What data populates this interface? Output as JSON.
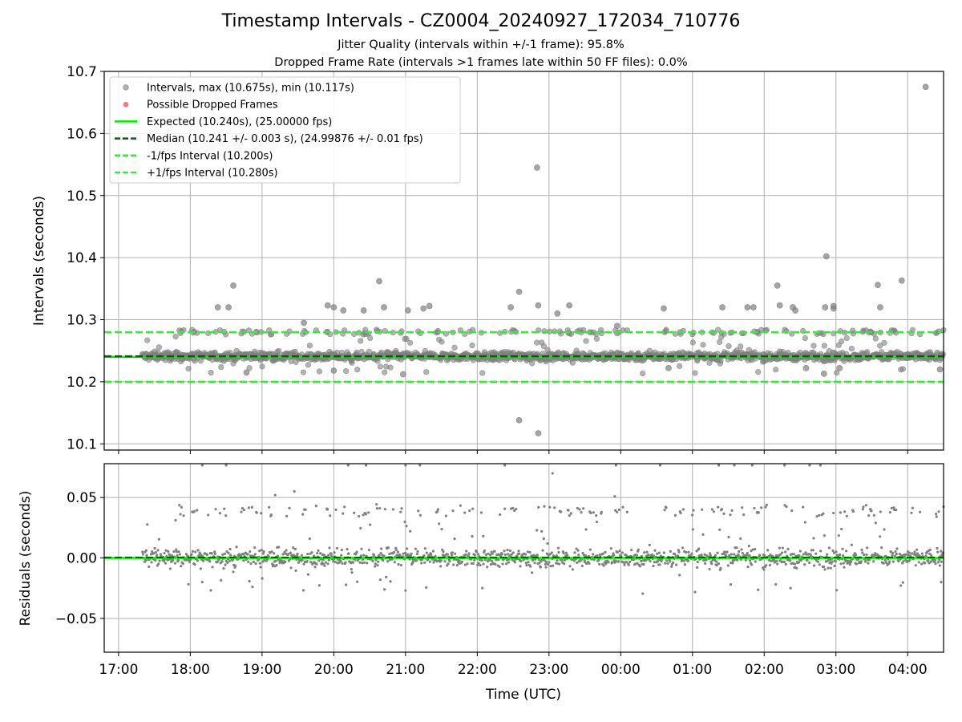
{
  "title": "Timestamp Intervals - CZ0004_20240927_172034_710776",
  "subtitle_1": "Jitter Quality (intervals within +/-1 frame): 95.8%",
  "subtitle_2": "Dropped Frame Rate (intervals >1 frames late within 50 FF files): 0.0%",
  "colors": {
    "intervals": "#808080",
    "dropped": "#ff3b3b",
    "expected": "#00ee00",
    "median": "#006400",
    "fps_band": "#33ee33",
    "grid": "#b0b0b0"
  },
  "chart_data": [
    {
      "type": "scatter",
      "name": "intervals-panel",
      "ylabel": "Intervals (seconds)",
      "ylim": [
        10.09,
        10.7
      ],
      "yticks": [
        10.1,
        10.2,
        10.3,
        10.4,
        10.5,
        10.6,
        10.7
      ],
      "ytick_labels": [
        "10.1",
        "10.2",
        "10.3",
        "10.4",
        "10.5",
        "10.6",
        "10.7"
      ],
      "grid": true,
      "legend_position": "upper-left",
      "legend": [
        "Intervals, max (10.675s), min (10.117s)",
        "Possible Dropped Frames",
        "Expected (10.240s), (25.00000 fps)",
        "Median (10.241 +/- 0.003 s), (24.99876 +/- 0.01 fps)",
        "-1/fps Interval (10.200s)",
        "+1/fps Interval (10.280s)"
      ],
      "reference_lines": {
        "expected": 10.24,
        "median": 10.241,
        "minus_fps": 10.2,
        "plus_fps": 10.28
      },
      "series_stats": {
        "max": 10.675,
        "min": 10.117,
        "median": 10.241,
        "median_spread": 0.003,
        "time_start": "17:20",
        "time_end": "04:30"
      },
      "outliers": [
        {
          "t": "18:23",
          "y": 10.32
        },
        {
          "t": "18:32",
          "y": 10.32
        },
        {
          "t": "18:36",
          "y": 10.355
        },
        {
          "t": "18:47",
          "y": 10.215
        },
        {
          "t": "19:35",
          "y": 10.295
        },
        {
          "t": "19:55",
          "y": 10.323
        },
        {
          "t": "20:00",
          "y": 10.32
        },
        {
          "t": "20:00",
          "y": 10.218
        },
        {
          "t": "20:08",
          "y": 10.315
        },
        {
          "t": "20:25",
          "y": 10.315
        },
        {
          "t": "20:38",
          "y": 10.362
        },
        {
          "t": "20:42",
          "y": 10.32
        },
        {
          "t": "20:58",
          "y": 10.212
        },
        {
          "t": "21:02",
          "y": 10.315
        },
        {
          "t": "21:15",
          "y": 10.318
        },
        {
          "t": "21:20",
          "y": 10.322
        },
        {
          "t": "22:28",
          "y": 10.32
        },
        {
          "t": "22:35",
          "y": 10.345
        },
        {
          "t": "22:35",
          "y": 10.138
        },
        {
          "t": "22:50",
          "y": 10.545
        },
        {
          "t": "22:51",
          "y": 10.323
        },
        {
          "t": "22:51",
          "y": 10.117
        },
        {
          "t": "23:07",
          "y": 10.31
        },
        {
          "t": "23:17",
          "y": 10.323
        },
        {
          "t": "23:57",
          "y": 10.29
        },
        {
          "t": "00:36",
          "y": 10.318
        },
        {
          "t": "00:40",
          "y": 10.222
        },
        {
          "t": "01:25",
          "y": 10.32
        },
        {
          "t": "01:46",
          "y": 10.32
        },
        {
          "t": "01:51",
          "y": 10.32
        },
        {
          "t": "02:11",
          "y": 10.355
        },
        {
          "t": "02:13",
          "y": 10.323
        },
        {
          "t": "02:24",
          "y": 10.32
        },
        {
          "t": "02:26",
          "y": 10.315
        },
        {
          "t": "02:35",
          "y": 10.222
        },
        {
          "t": "02:50",
          "y": 10.213
        },
        {
          "t": "02:51",
          "y": 10.32
        },
        {
          "t": "02:52",
          "y": 10.402
        },
        {
          "t": "02:58",
          "y": 10.318
        },
        {
          "t": "02:58",
          "y": 10.322
        },
        {
          "t": "03:03",
          "y": 10.222
        },
        {
          "t": "03:35",
          "y": 10.356
        },
        {
          "t": "03:37",
          "y": 10.32
        },
        {
          "t": "03:55",
          "y": 10.363
        },
        {
          "t": "04:15",
          "y": 10.675
        },
        {
          "t": "04:27",
          "y": 10.22
        }
      ]
    },
    {
      "type": "scatter",
      "name": "residuals-panel",
      "xlabel": "Time (UTC)",
      "ylabel": "Residuals (seconds)",
      "ylim": [
        -0.078,
        0.078
      ],
      "yticks": [
        -0.05,
        0.0,
        0.05
      ],
      "ytick_labels": [
        "−0.05",
        "0.00",
        "0.05"
      ],
      "xticks": [
        "17:00",
        "18:00",
        "19:00",
        "20:00",
        "21:00",
        "22:00",
        "23:00",
        "00:00",
        "01:00",
        "02:00",
        "03:00",
        "04:00"
      ],
      "grid": true,
      "reference_lines": {
        "zero": 0.0
      },
      "outliers": [
        {
          "t": "19:11",
          "y": 0.052
        },
        {
          "t": "19:27",
          "y": 0.055
        },
        {
          "t": "22:05",
          "y": 0.018
        },
        {
          "t": "23:03",
          "y": 0.07
        },
        {
          "t": "23:55",
          "y": 0.051
        },
        {
          "t": "18:52",
          "y": -0.024
        },
        {
          "t": "21:00",
          "y": -0.027
        },
        {
          "t": "18:10",
          "y": -0.02
        },
        {
          "t": "02:22",
          "y": -0.025
        },
        {
          "t": "01:32",
          "y": -0.022
        },
        {
          "t": "04:28",
          "y": -0.02
        }
      ]
    }
  ]
}
